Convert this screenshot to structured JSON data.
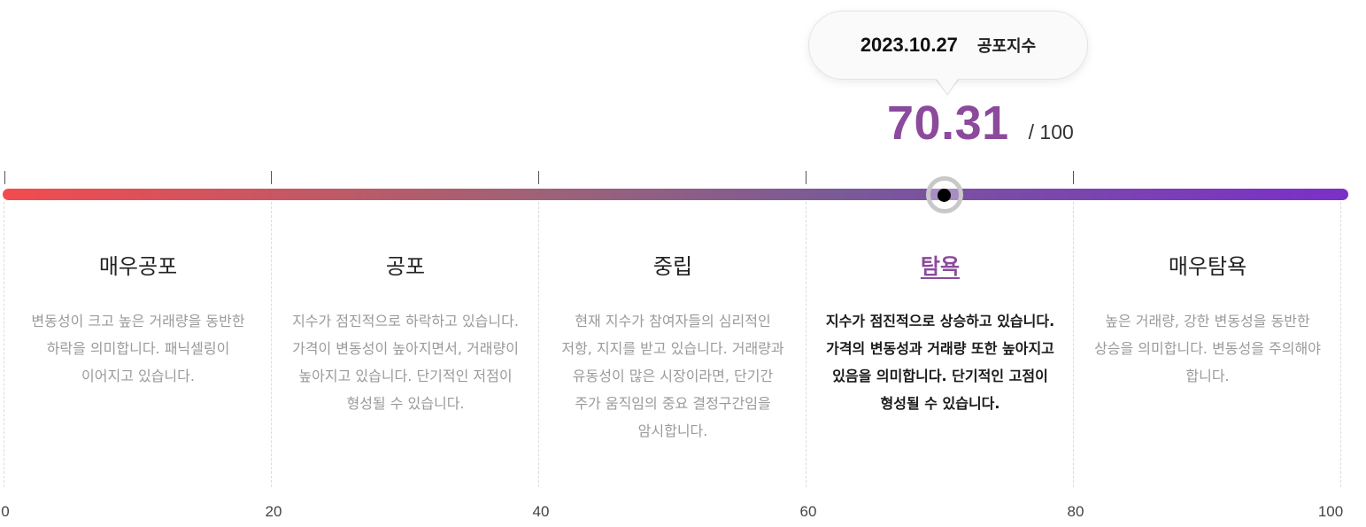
{
  "tooltip": {
    "date": "2023.10.27",
    "label": "공포지수"
  },
  "score": {
    "value": "70.31",
    "max": "/ 100",
    "numeric": 70.31,
    "range": [
      0,
      100
    ]
  },
  "zones": [
    {
      "title": "매우공포",
      "desc": "변동성이 크고 높은 거래량을 동반한 하락을 의미합니다. 패닉셀링이 이어지고 있습니다.",
      "active": false
    },
    {
      "title": "공포",
      "desc": "지수가 점진적으로 하락하고 있습니다. 가격이 변동성이 높아지면서, 거래량이 높아지고 있습니다. 단기적인 저점이 형성될 수 있습니다.",
      "active": false
    },
    {
      "title": "중립",
      "desc": "현재 지수가 참여자들의 심리적인 저항, 지지를 받고 있습니다. 거래량과 유동성이 많은 시장이라면, 단기간 주가 움직임의 중요 결정구간임을 암시합니다.",
      "active": false
    },
    {
      "title": "탐욕",
      "desc": "지수가 점진적으로 상승하고 있습니다. 가격의 변동성과 거래량 또한 높아지고 있음을 의미합니다. 단기적인 고점이 형성될 수 있습니다.",
      "active": true
    },
    {
      "title": "매우탐욕",
      "desc": "높은 거래량, 강한 변동성을 동반한 상승을 의미합니다. 변동성을 주의해야 합니다.",
      "active": false
    }
  ],
  "axis": [
    "0",
    "20",
    "40",
    "60",
    "80",
    "100"
  ],
  "colors": {
    "gradient_start": "#f24b4e",
    "gradient_end": "#7b2fc8",
    "accent": "#8b4a9c",
    "marker": "#000000"
  }
}
